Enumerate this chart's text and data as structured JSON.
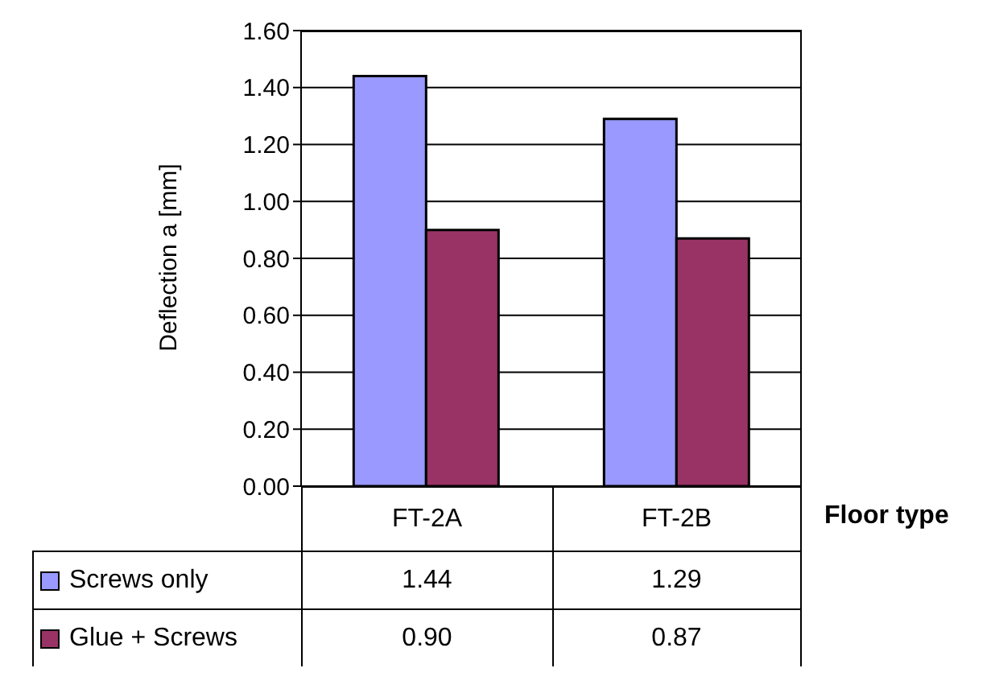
{
  "chart_data": {
    "type": "bar",
    "xlabel": "Floor type",
    "ylabel": "Deflection a [mm]",
    "categories": [
      "FT-2A",
      "FT-2B"
    ],
    "series": [
      {
        "name": "Screws only",
        "color": "#9999ff",
        "values": [
          1.44,
          1.29
        ],
        "value_labels": [
          "1.44",
          "1.29"
        ]
      },
      {
        "name": "Glue + Screws",
        "color": "#993366",
        "values": [
          0.9,
          0.87
        ],
        "value_labels": [
          "0.90",
          "0.87"
        ]
      }
    ],
    "ylim": [
      0,
      1.6
    ],
    "yticks": [
      {
        "value": 0,
        "label": "0.00"
      },
      {
        "value": 0.2,
        "label": "0.20"
      },
      {
        "value": 0.4,
        "label": "0.40"
      },
      {
        "value": 0.6,
        "label": "0.60"
      },
      {
        "value": 0.8,
        "label": "0.80"
      },
      {
        "value": 1,
        "label": "1.00"
      },
      {
        "value": 1.2,
        "label": "1.20"
      },
      {
        "value": 1.4,
        "label": "1.40"
      },
      {
        "value": 1.6,
        "label": "1.60"
      }
    ],
    "grid": true,
    "legend": "bottom"
  }
}
